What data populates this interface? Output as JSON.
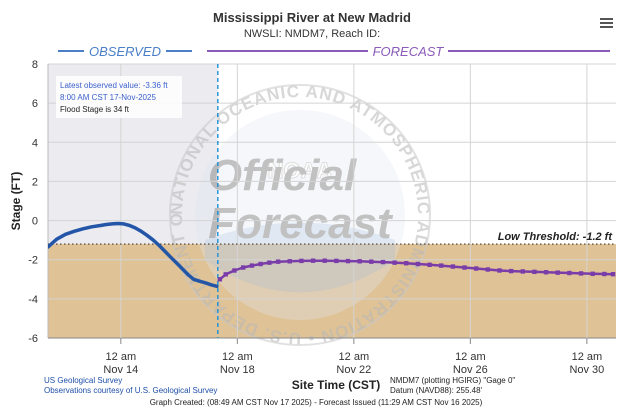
{
  "chart_data": {
    "type": "line",
    "title": "Mississippi River at New Madrid",
    "subtitle": "NWSLI: NMDM7, Reach ID:",
    "ylabel": "Stage (FT)",
    "xlabel": "Site Time (CST)",
    "ylim": [
      -6,
      8
    ],
    "y_ticks": [
      -6,
      -4,
      -2,
      0,
      2,
      4,
      6,
      8
    ],
    "y_tick_labels": [
      "-6",
      "-4",
      "-2",
      "0",
      "2",
      "4",
      "6",
      "8"
    ],
    "x_range_days": [
      0,
      19.5
    ],
    "x_ticks": [
      {
        "day": 2.5,
        "line1": "12 am",
        "line2": "Nov 14"
      },
      {
        "day": 6.5,
        "line1": "12 am",
        "line2": "Nov 18"
      },
      {
        "day": 10.5,
        "line1": "12 am",
        "line2": "Nov 22"
      },
      {
        "day": 14.5,
        "line1": "12 am",
        "line2": "Nov 26"
      },
      {
        "day": 18.5,
        "line1": "12 am",
        "line2": "Nov 30"
      }
    ],
    "observed_label": "OBSERVED",
    "forecast_label": "FORECAST",
    "issued_day": 5.83,
    "threshold": {
      "label": "Low Threshold: -1.2 ft",
      "value": -1.2
    },
    "series": [
      {
        "name": "Observed",
        "color": "#2456a8",
        "points": [
          [
            0,
            -1.35
          ],
          [
            0.3,
            -0.95
          ],
          [
            0.6,
            -0.7
          ],
          [
            0.9,
            -0.55
          ],
          [
            1.2,
            -0.42
          ],
          [
            1.5,
            -0.32
          ],
          [
            1.8,
            -0.25
          ],
          [
            2.0,
            -0.2
          ],
          [
            2.2,
            -0.17
          ],
          [
            2.4,
            -0.15
          ],
          [
            2.6,
            -0.17
          ],
          [
            2.8,
            -0.25
          ],
          [
            3.0,
            -0.38
          ],
          [
            3.2,
            -0.55
          ],
          [
            3.4,
            -0.75
          ],
          [
            3.6,
            -0.98
          ],
          [
            3.8,
            -1.25
          ],
          [
            4.0,
            -1.55
          ],
          [
            4.2,
            -1.85
          ],
          [
            4.4,
            -2.15
          ],
          [
            4.6,
            -2.45
          ],
          [
            4.8,
            -2.75
          ],
          [
            5.0,
            -3.0
          ],
          [
            5.2,
            -3.1
          ],
          [
            5.4,
            -3.18
          ],
          [
            5.6,
            -3.28
          ],
          [
            5.8,
            -3.36
          ]
        ]
      },
      {
        "name": "Forecast",
        "color": "#7a3ca8",
        "points": [
          [
            5.9,
            -3.0
          ],
          [
            6.1,
            -2.75
          ],
          [
            6.4,
            -2.55
          ],
          [
            6.7,
            -2.4
          ],
          [
            7.0,
            -2.3
          ],
          [
            7.3,
            -2.22
          ],
          [
            7.6,
            -2.15
          ],
          [
            7.9,
            -2.1
          ],
          [
            8.3,
            -2.08
          ],
          [
            8.7,
            -2.06
          ],
          [
            9.1,
            -2.05
          ],
          [
            9.5,
            -2.05
          ],
          [
            9.9,
            -2.06
          ],
          [
            10.3,
            -2.07
          ],
          [
            10.7,
            -2.08
          ],
          [
            11.1,
            -2.1
          ],
          [
            11.5,
            -2.12
          ],
          [
            11.9,
            -2.15
          ],
          [
            12.3,
            -2.18
          ],
          [
            12.7,
            -2.22
          ],
          [
            13.1,
            -2.26
          ],
          [
            13.5,
            -2.3
          ],
          [
            13.9,
            -2.35
          ],
          [
            14.3,
            -2.4
          ],
          [
            14.7,
            -2.45
          ],
          [
            15.1,
            -2.5
          ],
          [
            15.5,
            -2.55
          ],
          [
            15.9,
            -2.58
          ],
          [
            16.3,
            -2.6
          ],
          [
            16.7,
            -2.62
          ],
          [
            17.1,
            -2.64
          ],
          [
            17.5,
            -2.66
          ],
          [
            17.9,
            -2.68
          ],
          [
            18.3,
            -2.7
          ],
          [
            18.7,
            -2.72
          ],
          [
            19.1,
            -2.73
          ],
          [
            19.4,
            -2.74
          ]
        ]
      }
    ],
    "colors": {
      "observed_bg": "#ebebf0",
      "fill": "#d9b784",
      "threshold_line": "#4a3a2a",
      "observed_header": "#4a7fc8",
      "forecast_header": "#8a5ab8"
    }
  },
  "infobox": {
    "line1": "Latest observed value: -3.36 ft",
    "line2": "8:00 AM CST 17-Nov-2025",
    "line3": "Flood Stage is 34 ft"
  },
  "watermark": {
    "word1": "Official",
    "word2": "Forecast",
    "logo_text": "NOAA",
    "ring_text": "NATIONAL OCEANIC AND ATMOSPHERIC ADMINISTRATION • U.S. DEPARTMENT OF COMMERCE •"
  },
  "footer": {
    "usgs1": "US Geological Survey",
    "usgs2": "Observations courtesy of U.S. Geological Survey",
    "datum1": "NMDM7 (plotting HGIRG) \"Gage 0\"",
    "datum2": "Datum (NAVD88): 255.48'",
    "created": "Graph Created: (08:49 AM CST Nov 17 2025) - Forecast Issued (11:29 AM CST Nov 16 2025)"
  },
  "menu_icon": "hamburger-menu-icon"
}
